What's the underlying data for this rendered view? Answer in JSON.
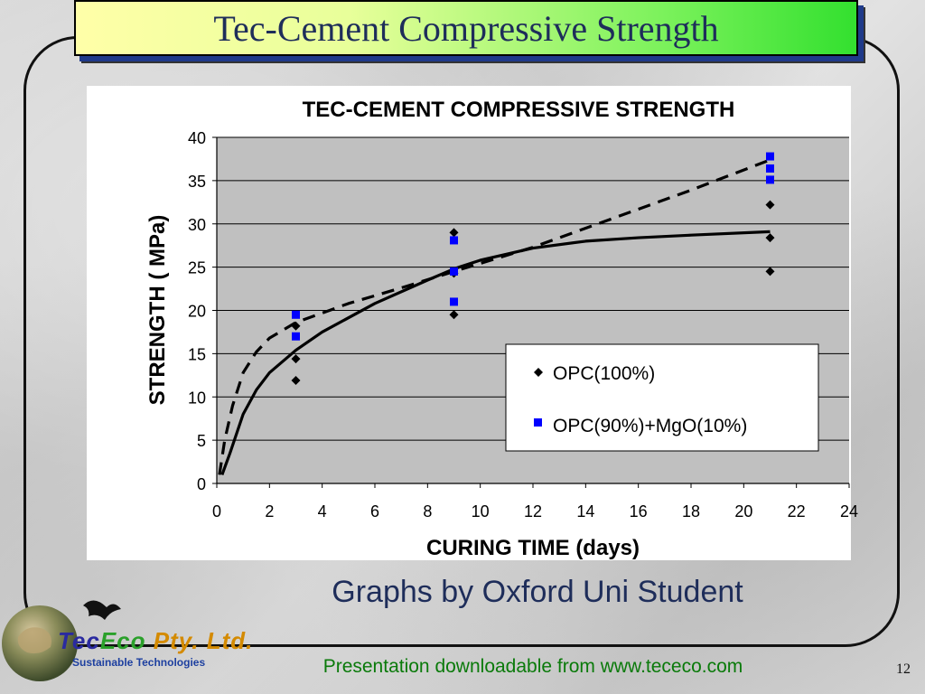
{
  "slide": {
    "title": "Tec-Cement Compressive Strength",
    "caption": "Graphs by Oxford Uni Student",
    "footer": "Presentation downloadable from www.tececo.com",
    "page_number": "12"
  },
  "logo": {
    "name_part1": "Tec",
    "name_part2": "Eco",
    "name_part3": " Pty. Ltd.",
    "tagline": "Sustainable Technologies"
  },
  "chart_data": {
    "type": "scatter",
    "title": "TEC-CEMENT COMPRESSIVE STRENGTH",
    "xlabel": "CURING TIME (days)",
    "ylabel": "STRENGTH ( MPa)",
    "xlim": [
      0,
      24
    ],
    "ylim": [
      0,
      40
    ],
    "xticks": [
      "0",
      "2",
      "4",
      "6",
      "8",
      "10",
      "12",
      "14",
      "16",
      "18",
      "20",
      "22",
      "24"
    ],
    "yticks": [
      "0",
      "5",
      "10",
      "15",
      "20",
      "25",
      "30",
      "35",
      "40"
    ],
    "grid": "horizontal",
    "plot_background": "#c0c0c0",
    "legend_position": "bottom-right",
    "series": [
      {
        "name": "OPC(100%)",
        "marker": "diamond",
        "color": "#000000",
        "points": [
          [
            3,
            18.2
          ],
          [
            3,
            14.4
          ],
          [
            3,
            11.9
          ],
          [
            9,
            29.0
          ],
          [
            9,
            24.3
          ],
          [
            9,
            19.5
          ],
          [
            21,
            32.2
          ],
          [
            21,
            28.4
          ],
          [
            21,
            24.5
          ]
        ]
      },
      {
        "name": "OPC(90%)+MgO(10%)",
        "marker": "square",
        "color": "#0000ff",
        "points": [
          [
            3,
            19.5
          ],
          [
            3,
            17.0
          ],
          [
            9,
            28.1
          ],
          [
            9,
            24.5
          ],
          [
            9,
            21.0
          ],
          [
            21,
            37.8
          ],
          [
            21,
            36.4
          ],
          [
            21,
            35.1
          ]
        ]
      }
    ],
    "trendlines": [
      {
        "series": "OPC(100%)",
        "style": "solid",
        "points": [
          [
            0.2,
            1.0
          ],
          [
            0.5,
            3.5
          ],
          [
            1,
            8.0
          ],
          [
            1.5,
            10.8
          ],
          [
            2,
            12.8
          ],
          [
            3,
            15.4
          ],
          [
            4,
            17.5
          ],
          [
            6,
            20.8
          ],
          [
            8,
            23.5
          ],
          [
            9,
            24.8
          ],
          [
            10,
            25.8
          ],
          [
            12,
            27.2
          ],
          [
            14,
            28.0
          ],
          [
            16,
            28.4
          ],
          [
            18,
            28.7
          ],
          [
            21,
            29.1
          ]
        ]
      },
      {
        "series": "OPC(90%)+MgO(10%)",
        "style": "dashed",
        "points": [
          [
            0.1,
            1.0
          ],
          [
            0.3,
            5.0
          ],
          [
            0.6,
            9.0
          ],
          [
            1,
            12.8
          ],
          [
            1.5,
            15.2
          ],
          [
            2,
            16.8
          ],
          [
            3,
            18.6
          ],
          [
            5,
            20.8
          ],
          [
            7,
            22.6
          ],
          [
            9,
            24.5
          ],
          [
            12,
            27.3
          ],
          [
            15,
            30.6
          ],
          [
            18,
            33.9
          ],
          [
            21,
            37.4
          ]
        ]
      }
    ]
  }
}
